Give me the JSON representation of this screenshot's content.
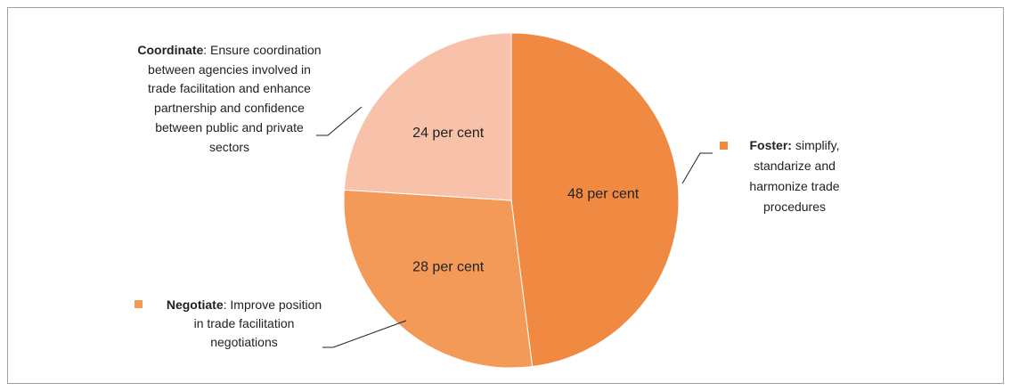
{
  "chart_data": {
    "type": "pie",
    "labels": [
      {
        "name": "Foster:",
        "text": "simplify, standarize and harmonize trade procedures"
      },
      {
        "name": "Negotiate",
        "text": ": Improve position in trade facilitation negotiations"
      },
      {
        "name": "Coordinate",
        "text": ": Ensure coordination between agencies involved in trade facilitation and enhance partnership and confidence between public and private sectors"
      }
    ],
    "values": [
      48,
      28,
      24
    ],
    "value_labels": [
      "48  per cent",
      "28  per cent",
      "24  per cent"
    ],
    "colors": [
      "#f08a43",
      "#f39a58",
      "#f8c1a9"
    ]
  }
}
